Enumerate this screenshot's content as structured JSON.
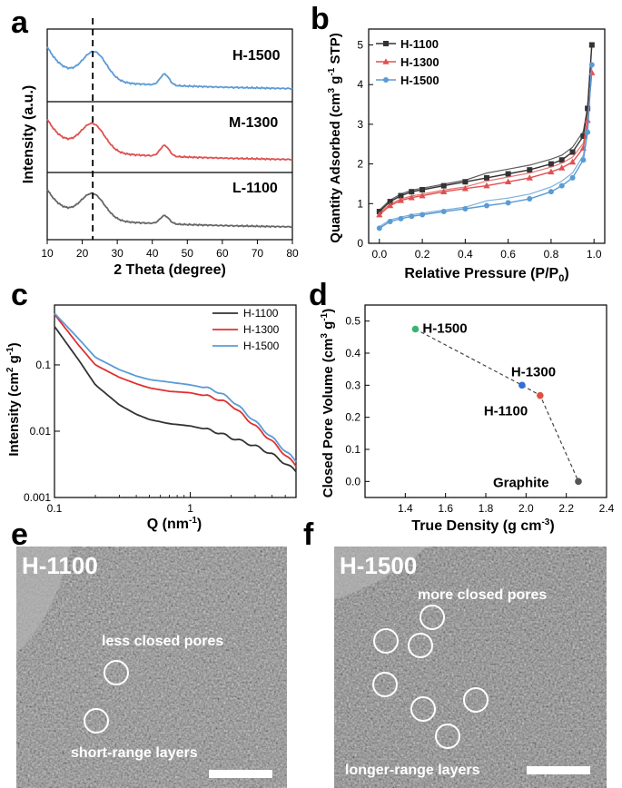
{
  "panel_letters": {
    "a": "a",
    "b": "b",
    "c": "c",
    "d": "d",
    "e": "e",
    "f": "f"
  },
  "chart_data": [
    {
      "id": "a",
      "type": "line",
      "xlabel": "2 Theta (degree)",
      "ylabel": "Intensity (a.u.)",
      "xlim": [
        10,
        80
      ],
      "xticks": [
        "10",
        "20",
        "30",
        "40",
        "50",
        "60",
        "70",
        "80"
      ],
      "dashed_line_x": 23,
      "series": [
        {
          "name": "H-1500",
          "color": "#5b9bd5",
          "peaks": [
            [
              23.5,
              0.55
            ],
            [
              43.5,
              0.22
            ]
          ],
          "base": 0.25
        },
        {
          "name": "M-1300",
          "color": "#e05050",
          "peaks": [
            [
              23,
              0.55
            ],
            [
              43.5,
              0.22
            ]
          ],
          "base": 0.25
        },
        {
          "name": "L-1100",
          "color": "#666666",
          "peaks": [
            [
              23,
              0.55
            ],
            [
              43.5,
              0.18
            ]
          ],
          "base": 0.25
        }
      ]
    },
    {
      "id": "b",
      "type": "line",
      "xlabel": "Relative Pressure (P/P",
      "xlabel_sub": "0",
      "xlabel_end": ")",
      "ylabel": "Quantity Adsorbed (cm",
      "ylabel_sup1": "3",
      "ylabel_mid": " g",
      "ylabel_sup2": "-1",
      "ylabel_end": " STP)",
      "xlim": [
        -0.05,
        1.05
      ],
      "ylim": [
        0,
        5.4
      ],
      "xticks": [
        "0.0",
        "0.2",
        "0.4",
        "0.6",
        "0.8",
        "1.0"
      ],
      "yticks": [
        "0",
        "1",
        "2",
        "3",
        "4",
        "5"
      ],
      "series": [
        {
          "name": "H-1100",
          "color": "#333333",
          "marker": "square",
          "x": [
            0.0,
            0.05,
            0.1,
            0.15,
            0.2,
            0.3,
            0.4,
            0.5,
            0.6,
            0.7,
            0.8,
            0.85,
            0.9,
            0.95,
            0.97,
            0.99
          ],
          "y": [
            0.8,
            1.05,
            1.2,
            1.3,
            1.35,
            1.45,
            1.55,
            1.65,
            1.75,
            1.85,
            2.0,
            2.1,
            2.3,
            2.7,
            3.4,
            5.0
          ]
        },
        {
          "name": "H-1300",
          "color": "#e05050",
          "marker": "triangle",
          "x": [
            0.0,
            0.05,
            0.1,
            0.15,
            0.2,
            0.3,
            0.4,
            0.5,
            0.6,
            0.7,
            0.8,
            0.85,
            0.9,
            0.95,
            0.97,
            0.99
          ],
          "y": [
            0.72,
            0.95,
            1.08,
            1.15,
            1.2,
            1.3,
            1.38,
            1.45,
            1.55,
            1.65,
            1.8,
            1.9,
            2.05,
            2.4,
            3.1,
            4.3
          ]
        },
        {
          "name": "H-1500",
          "color": "#5b9bd5",
          "marker": "circle",
          "x": [
            0.0,
            0.05,
            0.1,
            0.15,
            0.2,
            0.3,
            0.4,
            0.5,
            0.6,
            0.7,
            0.8,
            0.85,
            0.9,
            0.95,
            0.97,
            0.99
          ],
          "y": [
            0.38,
            0.55,
            0.62,
            0.68,
            0.72,
            0.8,
            0.87,
            0.95,
            1.02,
            1.12,
            1.3,
            1.45,
            1.65,
            2.1,
            2.8,
            4.5
          ]
        }
      ]
    },
    {
      "id": "c",
      "type": "line",
      "xlabel": "Q (nm",
      "xlabel_sup": "-1",
      "xlabel_end": ")",
      "ylabel": "Intensity (cm",
      "ylabel_sup1": "2",
      "ylabel_mid": " g",
      "ylabel_sup2": "-1",
      "ylabel_end": ")",
      "xscale": "log",
      "yscale": "log",
      "xlim": [
        0.1,
        6
      ],
      "ylim": [
        0.001,
        0.8
      ],
      "xticks": [
        {
          "v": 0.1,
          "t": "0.1"
        },
        {
          "v": 1,
          "t": "1"
        }
      ],
      "yticks": [
        {
          "v": 0.001,
          "t": "0.001"
        },
        {
          "v": 0.01,
          "t": "0.01"
        },
        {
          "v": 0.1,
          "t": "0.1"
        }
      ],
      "series": [
        {
          "name": "H-1100",
          "color": "#333333",
          "x": [
            0.1,
            0.15,
            0.2,
            0.3,
            0.4,
            0.5,
            0.7,
            1.0,
            1.5,
            2.0,
            3.0,
            4.0,
            6.0
          ],
          "y": [
            0.38,
            0.12,
            0.05,
            0.025,
            0.018,
            0.015,
            0.013,
            0.012,
            0.01,
            0.008,
            0.006,
            0.0045,
            0.0025
          ]
        },
        {
          "name": "H-1300",
          "color": "#e03030",
          "x": [
            0.1,
            0.15,
            0.2,
            0.3,
            0.4,
            0.5,
            0.7,
            1.0,
            1.5,
            2.0,
            3.0,
            4.0,
            6.0
          ],
          "y": [
            0.58,
            0.2,
            0.1,
            0.065,
            0.052,
            0.045,
            0.04,
            0.038,
            0.032,
            0.025,
            0.012,
            0.007,
            0.003
          ]
        },
        {
          "name": "H-1500",
          "color": "#5b9bd5",
          "x": [
            0.1,
            0.15,
            0.2,
            0.3,
            0.4,
            0.5,
            0.7,
            1.0,
            1.5,
            2.0,
            3.0,
            4.0,
            6.0
          ],
          "y": [
            0.6,
            0.25,
            0.13,
            0.085,
            0.068,
            0.06,
            0.055,
            0.05,
            0.042,
            0.03,
            0.014,
            0.008,
            0.0035
          ]
        }
      ]
    },
    {
      "id": "d",
      "type": "scatter",
      "xlabel": "True Density (g cm",
      "xlabel_sup": "-3",
      "xlabel_end": ")",
      "ylabel": "Closed Pore Volume (cm",
      "ylabel_sup1": "3",
      "ylabel_mid": " g",
      "ylabel_sup2": "-1",
      "ylabel_end": ")",
      "xlim": [
        1.2,
        2.4
      ],
      "ylim": [
        -0.05,
        0.55
      ],
      "xticks": [
        "1.4",
        "1.6",
        "1.8",
        "2.0",
        "2.2",
        "2.4"
      ],
      "yticks": [
        "0.0",
        "0.1",
        "0.2",
        "0.3",
        "0.4",
        "0.5"
      ],
      "points": [
        {
          "label": "H-1500",
          "x": 1.45,
          "y": 0.475,
          "color": "#3cb371"
        },
        {
          "label": "H-1300",
          "x": 1.98,
          "y": 0.3,
          "color": "#2f6fd6"
        },
        {
          "label": "H-1100",
          "x": 2.07,
          "y": 0.268,
          "color": "#e05040"
        },
        {
          "label": "Graphite",
          "x": 2.26,
          "y": 0.0,
          "color": "#555555"
        }
      ]
    }
  ],
  "micrographs": [
    {
      "id": "e",
      "title": "H-1100",
      "caption_top": "less closed pores",
      "caption_bottom": "short-range layers"
    },
    {
      "id": "f",
      "title": "H-1500",
      "caption_top": "more closed pores",
      "caption_bottom": "longer-range layers"
    }
  ]
}
